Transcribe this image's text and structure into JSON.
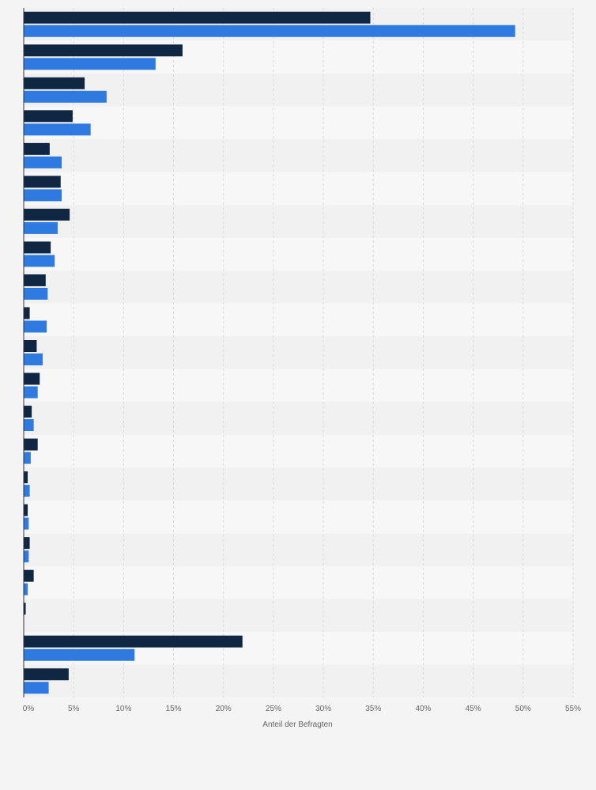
{
  "colors": {
    "background": "#f4f4f4",
    "band_light": "#f7f7f7",
    "band_dark": "#f1f1f1",
    "series_1": "#0f2742",
    "series_2": "#2f7ae0",
    "grid": "#d9d9d9",
    "axis": "#333333"
  },
  "chart_data": {
    "type": "bar",
    "orientation": "horizontal",
    "title": "",
    "xlabel": "Anteil der Befragten",
    "ylabel": "",
    "xlim": [
      0,
      55
    ],
    "x_ticks": [
      "0%",
      "5%",
      "10%",
      "15%",
      "20%",
      "25%",
      "30%",
      "35%",
      "40%",
      "45%",
      "50%",
      "55%"
    ],
    "x_tick_values": [
      0,
      5,
      10,
      15,
      20,
      25,
      30,
      35,
      40,
      45,
      50,
      55
    ],
    "grid": true,
    "grid_style": "dashed-vertical",
    "legend": "none",
    "categories": [
      "",
      "",
      "",
      "",
      "",
      "",
      "",
      "",
      "",
      "",
      "",
      "",
      "",
      "",
      "",
      "",
      "",
      "",
      "",
      "",
      ""
    ],
    "series": [
      {
        "color": "#0f2742",
        "values": [
          34.7,
          15.9,
          6.1,
          4.9,
          2.6,
          3.7,
          4.6,
          2.7,
          2.2,
          0.6,
          1.3,
          1.6,
          0.8,
          1.4,
          0.4,
          0.4,
          0.6,
          1.0,
          0.2,
          21.9,
          4.5
        ]
      },
      {
        "color": "#2f7ae0",
        "values": [
          49.2,
          13.2,
          8.3,
          6.7,
          3.8,
          3.8,
          3.4,
          3.1,
          2.4,
          2.3,
          1.9,
          1.4,
          1.0,
          0.7,
          0.6,
          0.5,
          0.5,
          0.4,
          0.0,
          11.1,
          2.5
        ]
      }
    ]
  }
}
